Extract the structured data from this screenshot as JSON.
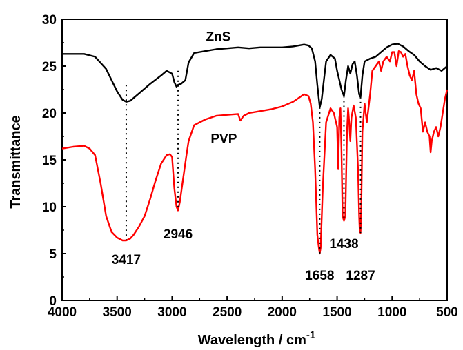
{
  "chart_data": {
    "type": "line",
    "title": "",
    "xlabel": "Wavelength / cm",
    "xlabel_superscript": "-1",
    "ylabel": "Transmittance",
    "xlim": [
      4000,
      500
    ],
    "ylim": [
      0,
      30
    ],
    "x_ticks": [
      4000,
      3500,
      3000,
      2500,
      2000,
      1500,
      1000,
      500
    ],
    "y_ticks": [
      0,
      5,
      10,
      15,
      20,
      25,
      30
    ],
    "grid": false,
    "legend": "none",
    "series": [
      {
        "name": "ZnS",
        "color": "#000000",
        "x": [
          4000,
          3900,
          3800,
          3700,
          3600,
          3500,
          3450,
          3417,
          3380,
          3300,
          3200,
          3100,
          3050,
          3000,
          2980,
          2960,
          2946,
          2920,
          2880,
          2850,
          2800,
          2700,
          2600,
          2500,
          2400,
          2300,
          2200,
          2100,
          2000,
          1900,
          1800,
          1760,
          1730,
          1700,
          1680,
          1658,
          1640,
          1620,
          1600,
          1560,
          1520,
          1500,
          1480,
          1460,
          1438,
          1420,
          1400,
          1380,
          1360,
          1340,
          1320,
          1300,
          1287,
          1270,
          1250,
          1200,
          1150,
          1100,
          1050,
          1000,
          950,
          900,
          850,
          800,
          750,
          700,
          650,
          600,
          550,
          500
        ],
        "y": [
          26.3,
          26.3,
          26.3,
          26.0,
          24.7,
          22.3,
          21.4,
          21.2,
          21.3,
          22.1,
          23.1,
          24.0,
          24.5,
          24.2,
          23.3,
          22.8,
          23.0,
          23.1,
          23.5,
          25.4,
          26.4,
          26.6,
          26.8,
          26.9,
          27.0,
          26.9,
          27.0,
          27.0,
          27.0,
          27.1,
          27.3,
          27.2,
          26.9,
          25.5,
          23.0,
          20.6,
          21.5,
          23.5,
          25.5,
          26.2,
          25.8,
          24.5,
          23.5,
          22.5,
          21.8,
          23.5,
          25.0,
          24.2,
          25.2,
          25.5,
          24.0,
          22.0,
          21.7,
          24.0,
          25.5,
          25.8,
          26.0,
          26.5,
          27.0,
          27.3,
          27.4,
          27.1,
          26.6,
          26.2,
          25.5,
          25.0,
          24.6,
          24.8,
          24.5,
          25.0
        ]
      },
      {
        "name": "PVP",
        "color": "#ff0000",
        "x": [
          4000,
          3900,
          3800,
          3750,
          3700,
          3650,
          3600,
          3550,
          3500,
          3450,
          3417,
          3380,
          3350,
          3300,
          3250,
          3200,
          3150,
          3100,
          3050,
          3020,
          3000,
          2980,
          2960,
          2946,
          2930,
          2900,
          2870,
          2850,
          2800,
          2700,
          2600,
          2500,
          2400,
          2380,
          2350,
          2300,
          2200,
          2100,
          2000,
          1900,
          1850,
          1800,
          1760,
          1740,
          1720,
          1700,
          1680,
          1665,
          1658,
          1650,
          1630,
          1600,
          1560,
          1530,
          1500,
          1490,
          1480,
          1470,
          1460,
          1450,
          1438,
          1425,
          1410,
          1400,
          1390,
          1380,
          1370,
          1350,
          1330,
          1310,
          1300,
          1295,
          1287,
          1280,
          1270,
          1250,
          1230,
          1200,
          1180,
          1150,
          1120,
          1100,
          1080,
          1050,
          1020,
          1000,
          980,
          960,
          940,
          920,
          900,
          880,
          860,
          840,
          820,
          800,
          780,
          760,
          740,
          720,
          700,
          680,
          660,
          650,
          640,
          620,
          600,
          580,
          560,
          540,
          520,
          500
        ],
        "y": [
          16.2,
          16.4,
          16.5,
          16.2,
          15.5,
          12.5,
          9.0,
          7.3,
          6.7,
          6.4,
          6.4,
          6.6,
          7.0,
          7.9,
          9.0,
          10.8,
          12.8,
          14.6,
          15.5,
          15.6,
          15.3,
          12.0,
          10.0,
          9.6,
          10.5,
          13.0,
          15.5,
          17.0,
          18.7,
          19.3,
          19.7,
          19.8,
          19.9,
          19.2,
          19.7,
          20.0,
          20.2,
          20.4,
          20.7,
          21.2,
          21.6,
          22.0,
          21.8,
          21.0,
          19.0,
          14.0,
          7.0,
          5.5,
          5.0,
          5.6,
          12.0,
          19.0,
          20.5,
          20.0,
          18.5,
          14.0,
          19.5,
          20.5,
          16.0,
          9.0,
          8.5,
          9.0,
          18.0,
          20.5,
          19.0,
          17.0,
          19.5,
          20.8,
          19.5,
          14.0,
          9.0,
          7.5,
          7.2,
          10.0,
          18.0,
          21.0,
          19.0,
          22.0,
          24.5,
          25.0,
          25.5,
          24.5,
          25.5,
          26.0,
          25.5,
          26.5,
          26.5,
          25.0,
          26.6,
          26.5,
          26.0,
          26.3,
          25.0,
          24.0,
          23.5,
          24.5,
          22.0,
          21.0,
          20.5,
          18.0,
          19.0,
          18.0,
          17.5,
          15.8,
          17.0,
          18.0,
          18.5,
          17.5,
          18.5,
          20.0,
          21.5,
          22.5
        ]
      }
    ],
    "annotations": [
      {
        "text": "3417",
        "x": 3417,
        "line_from": 23.0,
        "line_to": 6.4,
        "label_y": 3.9
      },
      {
        "text": "2946",
        "x": 2946,
        "line_from": 24.5,
        "line_to": 9.6,
        "label_y": 6.6
      },
      {
        "text": "1658",
        "x": 1658,
        "line_from": 20.6,
        "line_to": 5.0,
        "label_y": 2.2
      },
      {
        "text": "1438",
        "x": 1438,
        "line_from": 21.8,
        "line_to": 8.5,
        "label_y": 5.6
      },
      {
        "text": "1287",
        "x": 1287,
        "line_from": 21.7,
        "line_to": 7.2,
        "label_y": 2.2
      }
    ],
    "series_labels": [
      {
        "text": "ZnS",
        "x": 2580,
        "y": 27.7
      },
      {
        "text": "PVP",
        "x": 2530,
        "y": 16.8
      }
    ]
  }
}
